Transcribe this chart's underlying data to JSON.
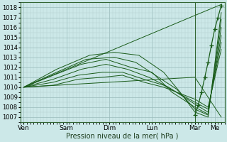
{
  "title": "",
  "xlabel": "Pression niveau de la mer( hPa )",
  "ylabel": "",
  "ylim": [
    1006.5,
    1018.5
  ],
  "yticks": [
    1007,
    1008,
    1009,
    1010,
    1011,
    1012,
    1013,
    1014,
    1015,
    1016,
    1017,
    1018
  ],
  "xtick_labels": [
    "Ven",
    "Sam",
    "Dim",
    "Lun",
    "Mar",
    "Me"
  ],
  "bg_color": "#cce8e8",
  "grid_major_color": "#99bbbb",
  "grid_minor_color": "#b3cccc",
  "line_color": "#1a5c1a",
  "lines": [
    {
      "x": [
        0,
        104,
        120
      ],
      "y": [
        1010.0,
        1017.2,
        1018.3
      ]
    },
    {
      "x": [
        0,
        104,
        120
      ],
      "y": [
        1010.0,
        1011.0,
        1007.0
      ]
    },
    {
      "x": [
        0,
        20,
        40,
        55,
        70,
        85,
        95,
        104,
        112,
        120
      ],
      "y": [
        1010.0,
        1011.8,
        1013.2,
        1013.5,
        1013.2,
        1011.5,
        1009.5,
        1007.5,
        1007.0,
        1017.5
      ]
    },
    {
      "x": [
        0,
        20,
        38,
        55,
        68,
        80,
        93,
        104,
        112,
        120
      ],
      "y": [
        1010.0,
        1011.5,
        1012.8,
        1013.0,
        1012.5,
        1011.2,
        1009.8,
        1007.8,
        1007.2,
        1016.8
      ]
    },
    {
      "x": [
        0,
        18,
        35,
        50,
        65,
        78,
        90,
        104,
        112,
        120
      ],
      "y": [
        1010.0,
        1011.2,
        1012.3,
        1012.8,
        1012.0,
        1011.5,
        1009.5,
        1008.0,
        1007.3,
        1016.0
      ]
    },
    {
      "x": [
        0,
        18,
        35,
        50,
        63,
        76,
        88,
        104,
        112,
        120
      ],
      "y": [
        1010.0,
        1010.8,
        1011.8,
        1012.3,
        1011.8,
        1011.0,
        1010.0,
        1008.3,
        1007.5,
        1015.2
      ]
    },
    {
      "x": [
        0,
        18,
        33,
        48,
        60,
        73,
        85,
        104,
        112,
        120
      ],
      "y": [
        1010.0,
        1010.5,
        1011.2,
        1011.5,
        1011.5,
        1010.8,
        1010.2,
        1008.5,
        1007.8,
        1014.5
      ]
    },
    {
      "x": [
        0,
        18,
        33,
        48,
        60,
        73,
        85,
        104,
        112,
        120
      ],
      "y": [
        1010.0,
        1010.2,
        1010.8,
        1011.0,
        1011.2,
        1010.5,
        1010.0,
        1008.8,
        1008.0,
        1013.8
      ]
    }
  ],
  "dotted_line": {
    "x": [
      104,
      106,
      108,
      110,
      112,
      114,
      116,
      118,
      120
    ],
    "y": [
      1007.2,
      1008.2,
      1009.5,
      1011.0,
      1012.5,
      1014.2,
      1015.8,
      1017.0,
      1018.2
    ]
  },
  "vline_x": 104,
  "x_day_positions": [
    0,
    26,
    52,
    78,
    104,
    116
  ],
  "xlim": [
    -2,
    122
  ]
}
